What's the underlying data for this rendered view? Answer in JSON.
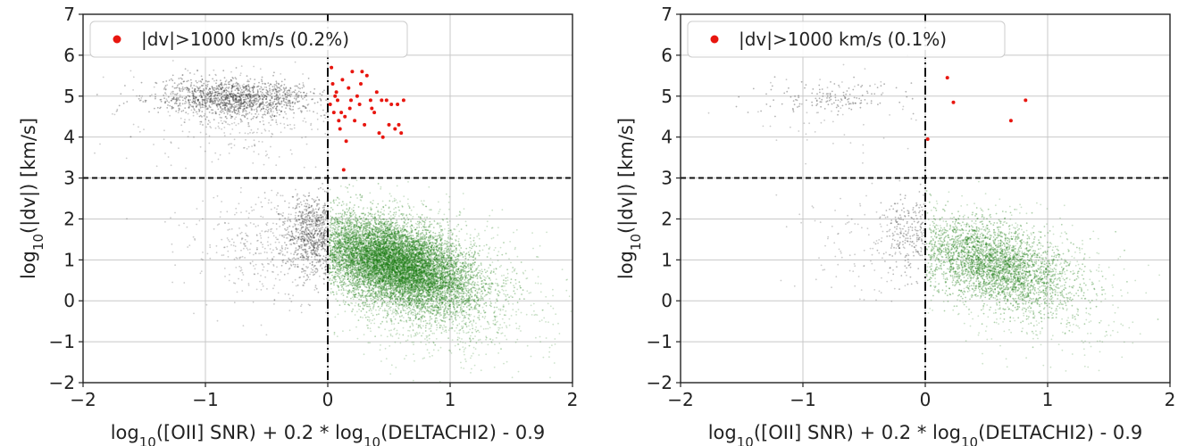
{
  "chart_data": [
    {
      "type": "scatter",
      "panel": "left",
      "xlabel": "log10([OII] SNR) + 0.2 * log10(DELTACHI2) - 0.9",
      "ylabel": "log10(|dv|) [km/s]",
      "xlim": [
        -2,
        2
      ],
      "ylim": [
        -2,
        7
      ],
      "xticks": [
        "−2",
        "−1",
        "0",
        "1",
        "2"
      ],
      "yticks": [
        "−2",
        "−1",
        "0",
        "1",
        "2",
        "3",
        "4",
        "5",
        "6",
        "7"
      ],
      "grid": true,
      "legend": {
        "position": "top-left",
        "label": "|dv|>1000 km/s (0.2%)"
      },
      "reference_lines": {
        "vertical_x": 0,
        "horizontal_y": 3
      },
      "colors": {
        "failure": "#e8160f",
        "good": "#1a7a12",
        "rejected": "#333333"
      },
      "series": [
        {
          "name": "|dv|>1000 km/s (0.2%)",
          "color": "#e8160f",
          "x": [
            0.02,
            0.04,
            0.05,
            0.07,
            0.08,
            0.1,
            0.12,
            0.14,
            0.15,
            0.17,
            0.18,
            0.2,
            0.22,
            0.24,
            0.26,
            0.28,
            0.3,
            0.32,
            0.35,
            0.38,
            0.4,
            0.42,
            0.45,
            0.48,
            0.5,
            0.52,
            0.55,
            0.57,
            0.6,
            0.62,
            0.03,
            0.09,
            0.13,
            0.19,
            0.27,
            0.36,
            0.44,
            0.58,
            0.06,
            0.11
          ],
          "y": [
            4.8,
            5.3,
            4.6,
            5.1,
            4.9,
            4.2,
            5.4,
            4.5,
            3.9,
            5.2,
            4.7,
            5.6,
            4.4,
            5.0,
            4.8,
            5.6,
            4.3,
            5.5,
            4.9,
            4.6,
            5.1,
            4.1,
            4.0,
            4.9,
            4.3,
            4.8,
            4.2,
            4.8,
            4.1,
            4.9,
            5.7,
            4.4,
            3.2,
            4.9,
            5.3,
            4.7,
            4.9,
            4.3,
            5.0,
            4.6
          ]
        }
      ]
    },
    {
      "type": "scatter",
      "panel": "right",
      "xlabel": "log10([OII] SNR) + 0.2 * log10(DELTACHI2) - 0.9",
      "ylabel": "log10(|dv|) [km/s]",
      "xlim": [
        -2,
        2
      ],
      "ylim": [
        -2,
        7
      ],
      "xticks": [
        "−2",
        "−1",
        "0",
        "1",
        "2"
      ],
      "yticks": [
        "−2",
        "−1",
        "0",
        "1",
        "2",
        "3",
        "4",
        "5",
        "6",
        "7"
      ],
      "grid": true,
      "legend": {
        "position": "top-left",
        "label": "|dv|>1000 km/s (0.1%)"
      },
      "reference_lines": {
        "vertical_x": 0,
        "horizontal_y": 3
      },
      "colors": {
        "failure": "#e8160f",
        "good": "#1a7a12",
        "rejected": "#333333"
      },
      "series": [
        {
          "name": "|dv|>1000 km/s (0.1%)",
          "color": "#e8160f",
          "x": [
            0.02,
            0.18,
            0.23,
            0.7,
            0.82
          ],
          "y": [
            3.95,
            5.45,
            4.85,
            4.4,
            4.9
          ]
        }
      ]
    }
  ]
}
